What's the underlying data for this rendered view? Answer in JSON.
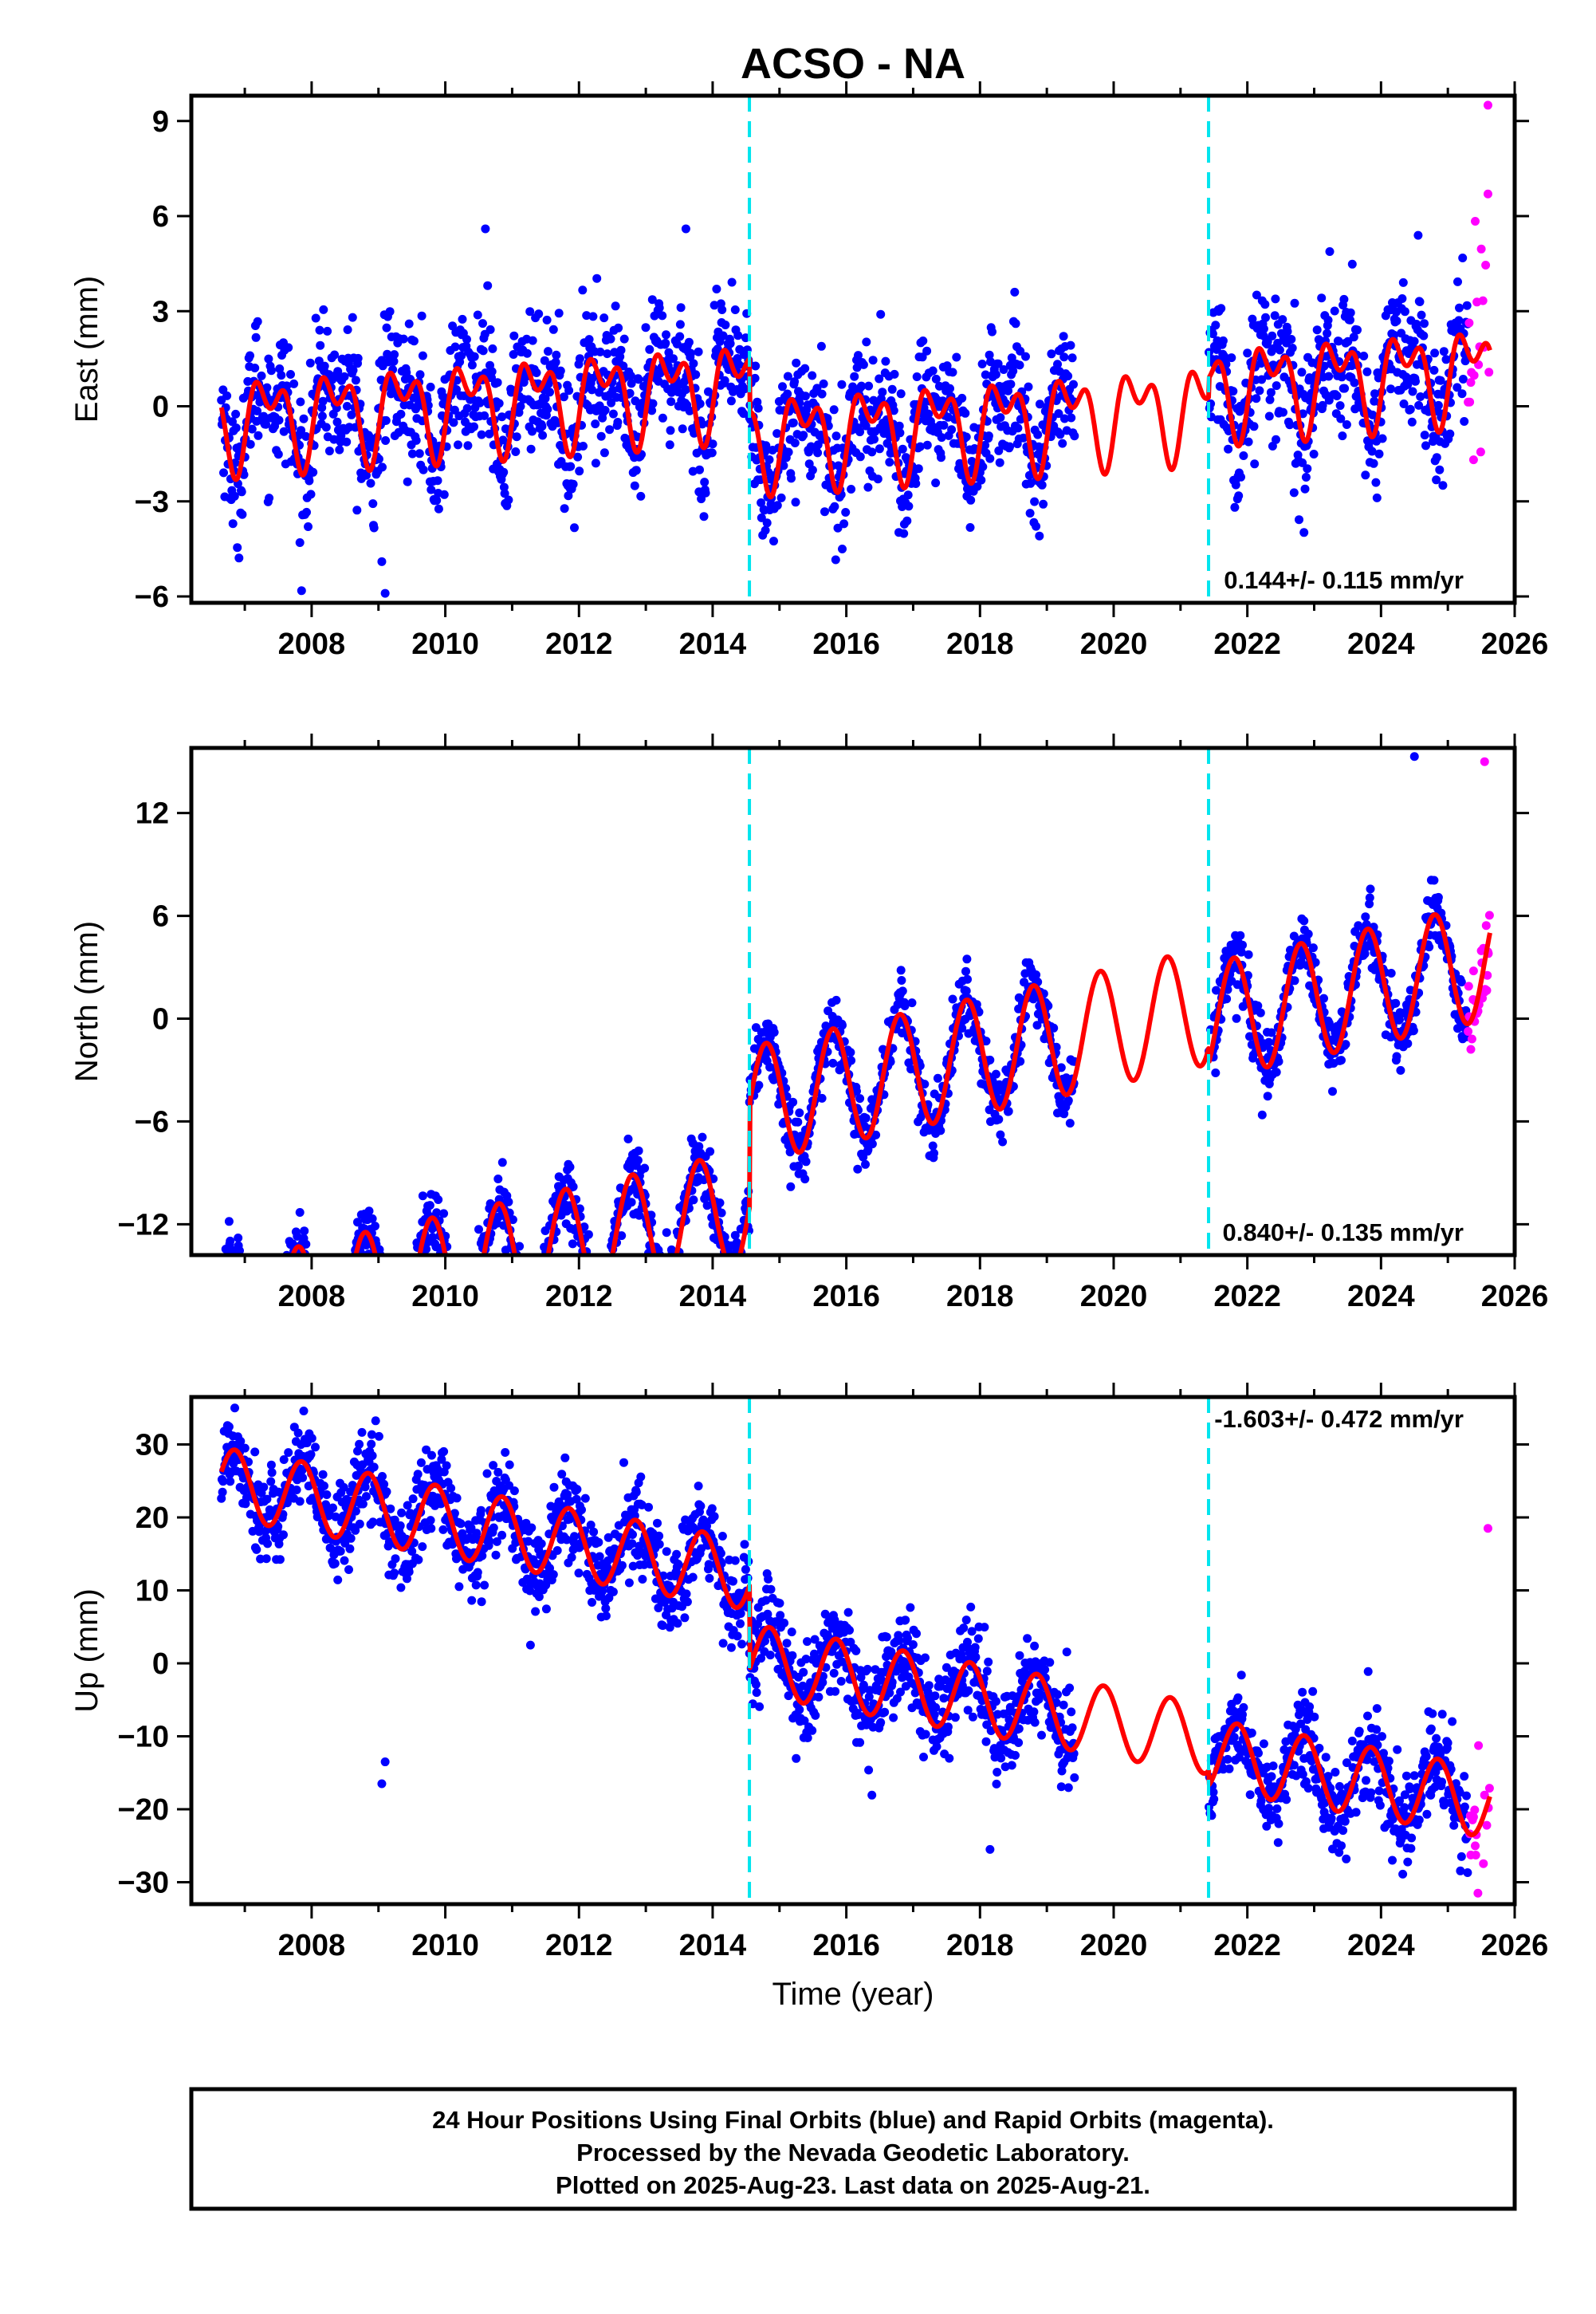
{
  "title": "ACSO - NA",
  "colors": {
    "final_orbits": "#0000ff",
    "rapid_orbits": "#ff00ff",
    "model_fit": "#ff0000",
    "equipment_change": "#00e5ee",
    "axes": "#000000"
  },
  "footer": {
    "line1": "24 Hour Positions Using Final Orbits (blue) and Rapid Orbits (magenta).",
    "line2": "Processed by the Nevada Geodetic Laboratory.",
    "line3": "Plotted on 2025-Aug-23. Last data on 2025-Aug-21."
  },
  "chart_data": [
    {
      "type": "scatter",
      "component": "east",
      "ylabel": "East (mm)",
      "xlabel": "",
      "xlim": [
        2006.2,
        2026.0
      ],
      "ylim": [
        -6.2,
        9.8
      ],
      "x_ticks": [
        2008,
        2010,
        2012,
        2014,
        2016,
        2018,
        2020,
        2022,
        2024,
        2026
      ],
      "y_ticks": [
        -6,
        -3,
        0,
        3,
        6,
        9
      ],
      "y_tick_labels": [
        "−6",
        "−3",
        "0",
        "3",
        "6",
        "9"
      ],
      "rate_label": "0.144+/- 0.115 mm/yr",
      "equipment_changes": [
        2014.55,
        2021.42
      ],
      "data_span": [
        2006.65,
        2025.63
      ],
      "data_gap": [
        2019.42,
        2021.42
      ],
      "rapid_span": [
        2025.3,
        2025.63
      ],
      "model": {
        "offsets": [
          [
            2006.65,
            0.6
          ],
          [
            2014.55,
            -1.1
          ],
          [
            2021.42,
            -0.5
          ]
        ],
        "rate": 0.144,
        "annual_amp": 1.1,
        "annual_phase": 0.1,
        "semi_amp": 0.8,
        "semi_phase": 0.5
      },
      "scatter_sd": 1.05,
      "outliers": [
        [
          2009.1,
          -5.9
        ],
        [
          2009.05,
          -4.9
        ],
        [
          2025.6,
          9.5
        ],
        [
          2025.6,
          6.7
        ],
        [
          2013.6,
          5.6
        ],
        [
          2010.6,
          5.6
        ]
      ],
      "series": [
        {
          "name": "Final Orbits (blue)",
          "role": "final"
        },
        {
          "name": "Rapid Orbits (magenta)",
          "role": "rapid"
        }
      ]
    },
    {
      "type": "scatter",
      "component": "north",
      "ylabel": "North (mm)",
      "xlabel": "",
      "xlim": [
        2006.2,
        2026.0
      ],
      "ylim": [
        -13.8,
        15.8
      ],
      "x_ticks": [
        2008,
        2010,
        2012,
        2014,
        2016,
        2018,
        2020,
        2022,
        2024,
        2026
      ],
      "y_ticks": [
        -12,
        -6,
        0,
        6,
        12
      ],
      "y_tick_labels": [
        "−12",
        "−6",
        "0",
        "6",
        "12"
      ],
      "rate_label": "0.840+/- 0.135 mm/yr",
      "equipment_changes": [
        2014.55,
        2021.42
      ],
      "data_span": [
        2006.65,
        2025.63
      ],
      "data_gap": [
        2019.42,
        2021.42
      ],
      "rapid_span": [
        2025.3,
        2025.63
      ],
      "model": {
        "offsets": [
          [
            2006.65,
            -11.5
          ],
          [
            2014.55,
            -5.5
          ],
          [
            2021.42,
            -6.4
          ]
        ],
        "rate": 0.84,
        "annual_amp": 3.4,
        "annual_phase": 0.55,
        "semi_amp": 0.0,
        "semi_phase": 0.0
      },
      "scatter_sd": 0.95,
      "outliers": [
        [
          2010.5,
          -12.3
        ],
        [
          2006.9,
          -12.8
        ],
        [
          2025.55,
          15.0
        ],
        [
          2024.5,
          15.3
        ]
      ],
      "series": [
        {
          "name": "Final Orbits (blue)",
          "role": "final"
        },
        {
          "name": "Rapid Orbits (magenta)",
          "role": "rapid"
        }
      ]
    },
    {
      "type": "scatter",
      "component": "up",
      "ylabel": "Up (mm)",
      "xlabel": "Time (year)",
      "xlim": [
        2006.2,
        2026.0
      ],
      "ylim": [
        -33.0,
        36.5
      ],
      "x_ticks": [
        2008,
        2010,
        2012,
        2014,
        2016,
        2018,
        2020,
        2022,
        2024,
        2026
      ],
      "y_ticks": [
        -30,
        -20,
        -10,
        0,
        10,
        20,
        30
      ],
      "y_tick_labels": [
        "−30",
        "−20",
        "−10",
        "0",
        "10",
        "20",
        "30"
      ],
      "rate_label": "-1.603+/- 0.472 mm/yr",
      "equipment_changes": [
        2014.55,
        2021.42
      ],
      "data_span": [
        2006.65,
        2025.63
      ],
      "data_gap": [
        2019.42,
        2021.42
      ],
      "rapid_span": [
        2025.3,
        2025.63
      ],
      "model": {
        "offsets": [
          [
            2006.65,
            13.0
          ],
          [
            2014.55,
            1.5
          ],
          [
            2021.42,
            -0.5
          ]
        ],
        "rate": -1.603,
        "annual_amp": 4.8,
        "annual_phase": 0.6,
        "semi_amp": 0.0,
        "semi_phase": 0.0
      },
      "scatter_sd": 3.2,
      "outliers": [
        [
          2006.85,
          35.0
        ],
        [
          2009.05,
          -16.5
        ],
        [
          2009.1,
          -13.5
        ],
        [
          2025.45,
          -31.5
        ],
        [
          2025.6,
          18.5
        ],
        [
          2018.15,
          -25.5
        ]
      ],
      "series": [
        {
          "name": "Final Orbits (blue)",
          "role": "final"
        },
        {
          "name": "Rapid Orbits (magenta)",
          "role": "rapid"
        }
      ]
    }
  ]
}
